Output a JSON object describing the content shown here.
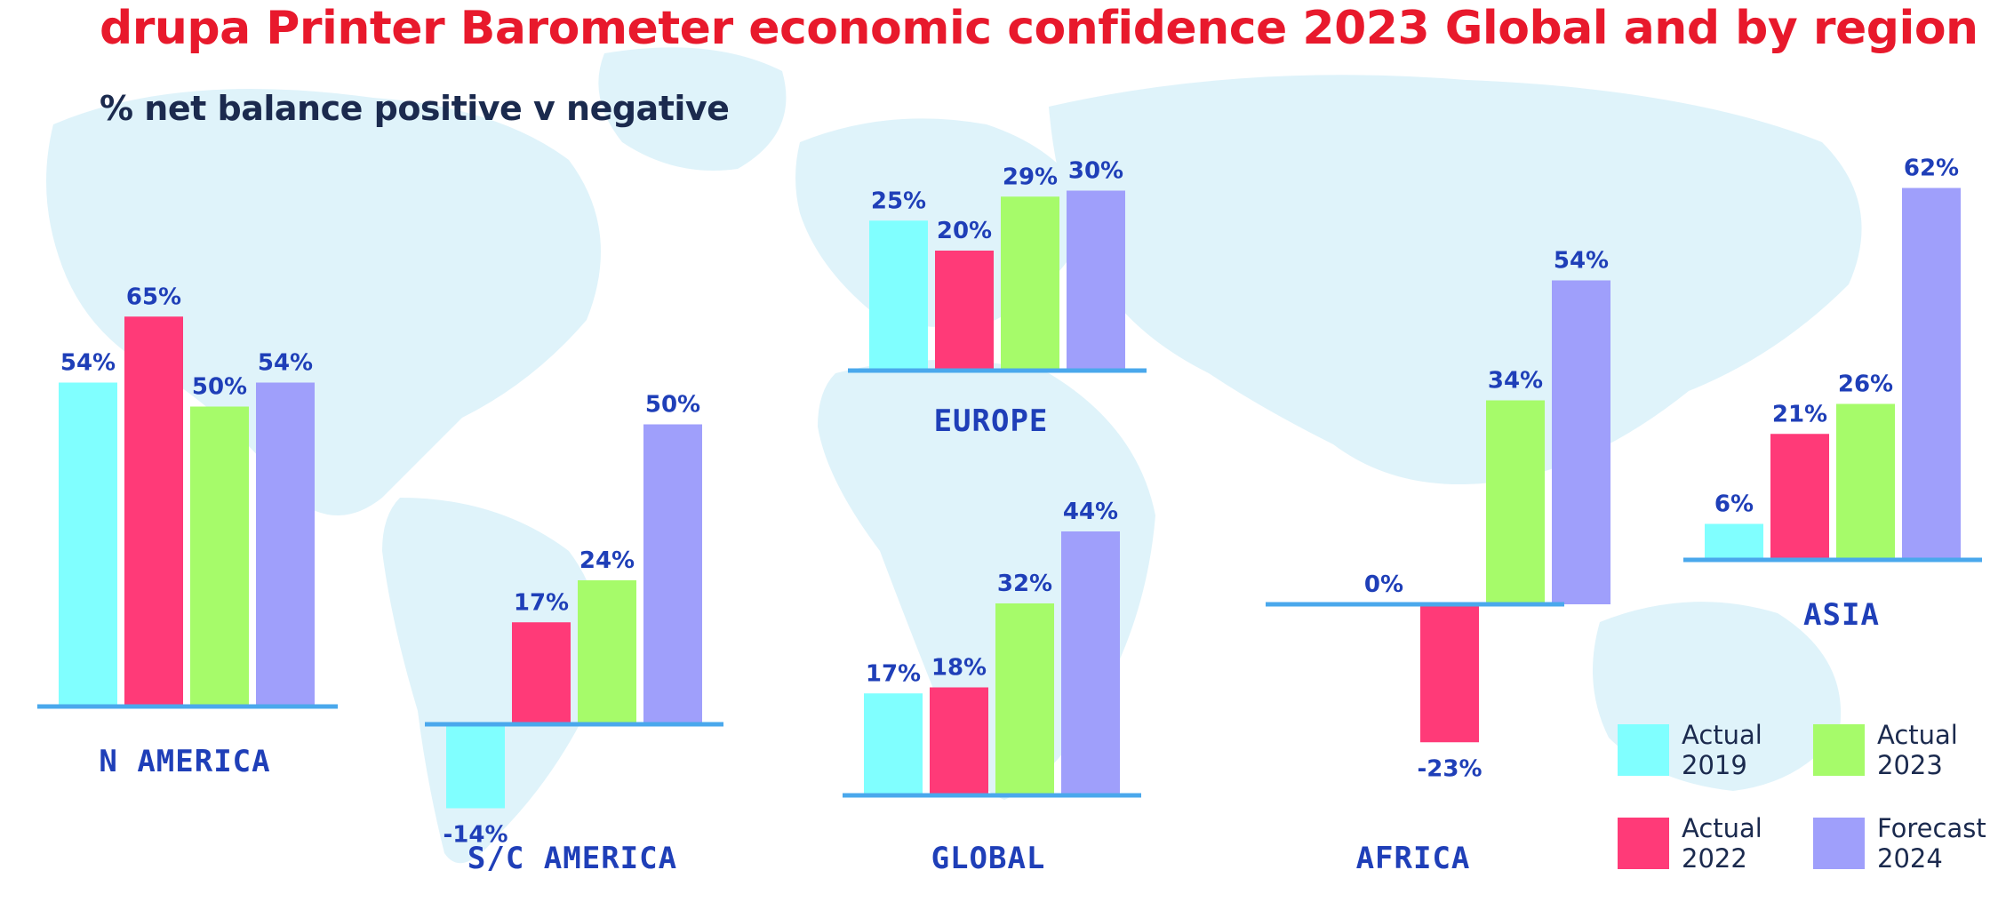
{
  "header": {
    "title": "drupa Printer Barometer economic confidence 2023 Global and by region",
    "subtitle": "% net balance positive v negative"
  },
  "colors": {
    "actual_2019": "#80ffff",
    "actual_2022": "#ff3a78",
    "actual_2023": "#a6fb6a",
    "forecast_2024": "#9f9ffb",
    "axis": "#4aa8ec",
    "label": "#1f3fb8",
    "map": "#dff3fa"
  },
  "legend": [
    {
      "label": "Actual 2019",
      "color": "#80ffff"
    },
    {
      "label": "Actual 2022",
      "color": "#ff3a78"
    },
    {
      "label": "Actual 2023",
      "color": "#a6fb6a"
    },
    {
      "label": "Forecast 2024",
      "color": "#9f9ffb"
    }
  ],
  "chart_data": {
    "type": "bar",
    "title": "drupa Printer Barometer economic confidence 2023 Global and by region",
    "subtitle": "% net balance positive v negative",
    "series_names": [
      "Actual 2019",
      "Actual 2022",
      "Actual 2023",
      "Forecast 2024"
    ],
    "regions": [
      {
        "name": "N AMERICA",
        "values": [
          54,
          65,
          50,
          54
        ]
      },
      {
        "name": "S/C AMERICA",
        "values": [
          -14,
          17,
          24,
          50
        ]
      },
      {
        "name": "EUROPE",
        "values": [
          25,
          20,
          29,
          30
        ]
      },
      {
        "name": "GLOBAL",
        "values": [
          17,
          18,
          32,
          44
        ]
      },
      {
        "name": "AFRICA",
        "values": [
          0,
          -23,
          34,
          54
        ]
      },
      {
        "name": "ASIA",
        "values": [
          6,
          21,
          26,
          62
        ]
      }
    ]
  }
}
